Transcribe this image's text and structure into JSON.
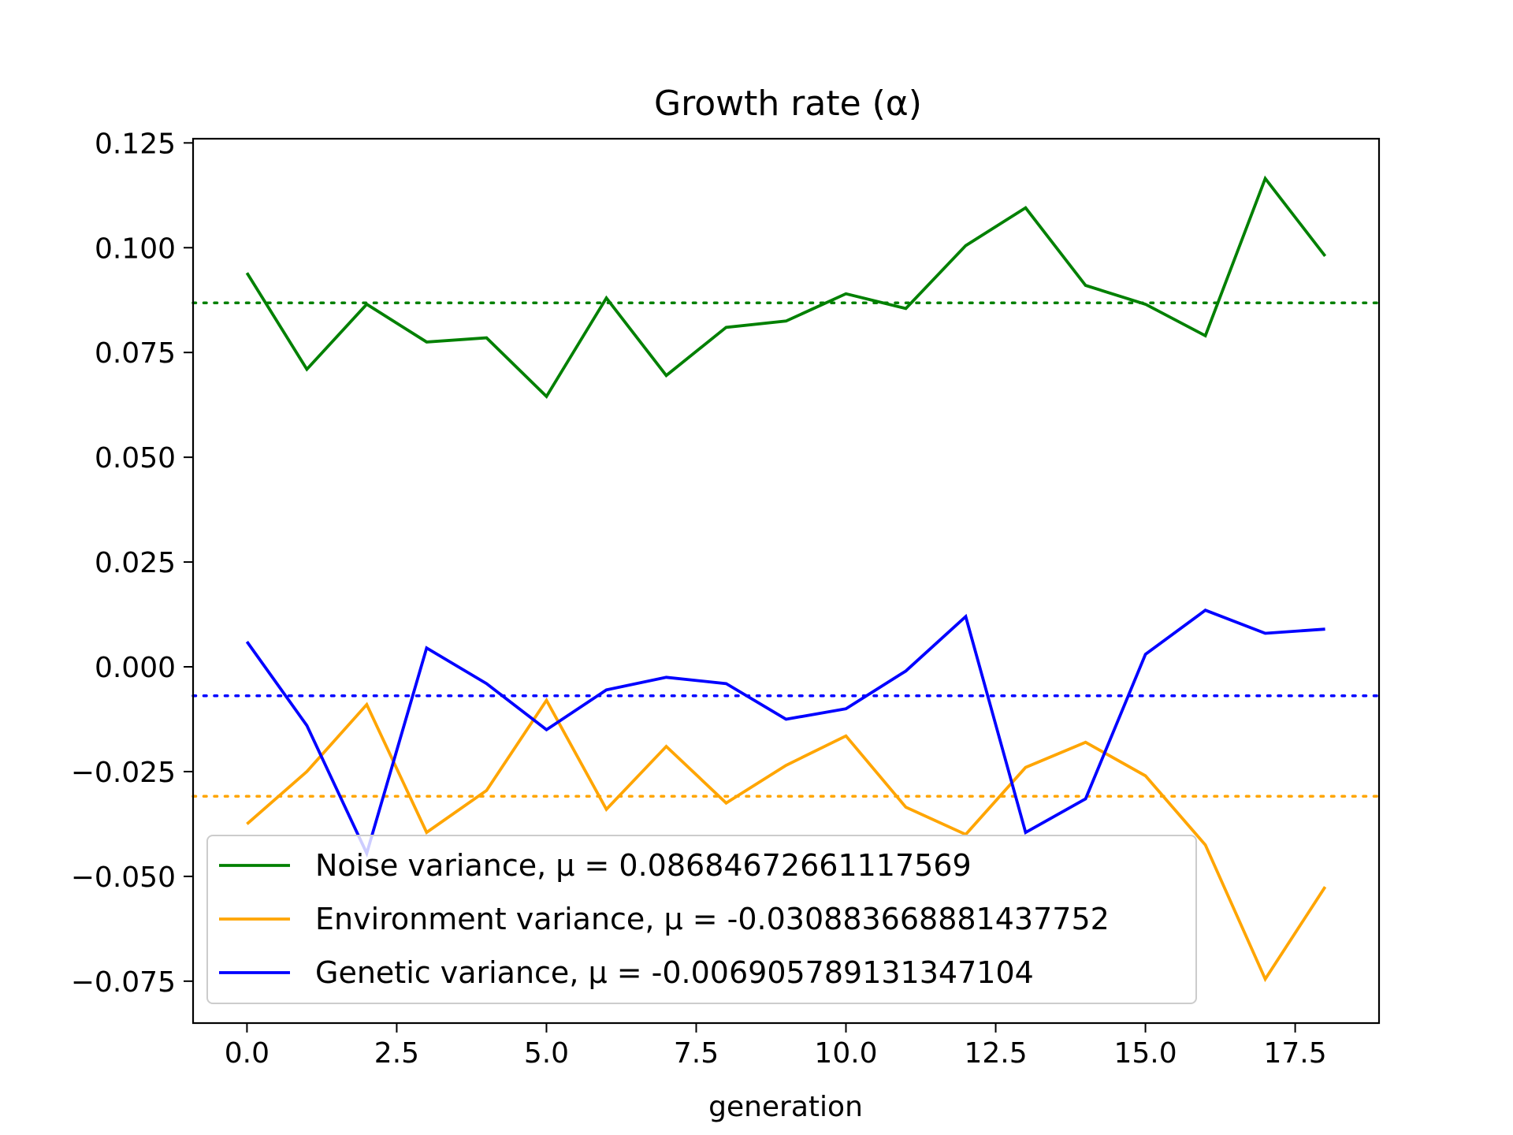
{
  "chart_data": {
    "type": "line",
    "title": "Growth rate (α)",
    "xlabel": "generation",
    "ylabel": "",
    "xlim": [
      -0.9,
      18.9
    ],
    "ylim": [
      -0.085,
      0.126
    ],
    "xticks": [
      0.0,
      2.5,
      5.0,
      7.5,
      10.0,
      12.5,
      15.0,
      17.5
    ],
    "xtick_labels": [
      "0.0",
      "2.5",
      "5.0",
      "7.5",
      "10.0",
      "12.5",
      "15.0",
      "17.5"
    ],
    "yticks": [
      0.125,
      0.1,
      0.075,
      0.05,
      0.025,
      0.0,
      -0.025,
      -0.05,
      -0.075
    ],
    "ytick_labels": [
      "0.125",
      "0.100",
      "0.075",
      "0.050",
      "0.025",
      "0.000",
      "−0.025",
      "−0.050",
      "−0.075"
    ],
    "grid": false,
    "legend_position": "lower-left",
    "x": [
      0,
      1,
      2,
      3,
      4,
      5,
      6,
      7,
      8,
      9,
      10,
      11,
      12,
      13,
      14,
      15,
      16,
      17,
      18
    ],
    "series": [
      {
        "name": "Noise variance, μ = 0.08684672661117569",
        "color": "#008000",
        "mean": 0.08684672661117569,
        "values": [
          0.094,
          0.071,
          0.0865,
          0.0775,
          0.0785,
          0.0645,
          0.088,
          0.0695,
          0.081,
          0.0825,
          0.089,
          0.0855,
          0.1005,
          0.1095,
          0.091,
          0.0865,
          0.079,
          0.1165,
          0.098
        ]
      },
      {
        "name": "Environment variance, μ = -0.030883668881437752",
        "color": "#ffa500",
        "mean": -0.030883668881437752,
        "values": [
          -0.0375,
          -0.025,
          -0.009,
          -0.0395,
          -0.0295,
          -0.008,
          -0.034,
          -0.019,
          -0.0325,
          -0.0235,
          -0.0165,
          -0.0335,
          -0.04,
          -0.024,
          -0.018,
          -0.026,
          -0.0425,
          -0.0745,
          -0.0525
        ]
      },
      {
        "name": "Genetic variance, μ = -0.006905789131347104",
        "color": "#0000ff",
        "mean": -0.006905789131347104,
        "values": [
          0.006,
          -0.014,
          -0.0445,
          0.0045,
          -0.004,
          -0.015,
          -0.0055,
          -0.0025,
          -0.004,
          -0.0125,
          -0.01,
          -0.001,
          0.012,
          -0.0395,
          -0.0315,
          0.003,
          0.0135,
          0.008,
          0.009
        ]
      }
    ]
  }
}
